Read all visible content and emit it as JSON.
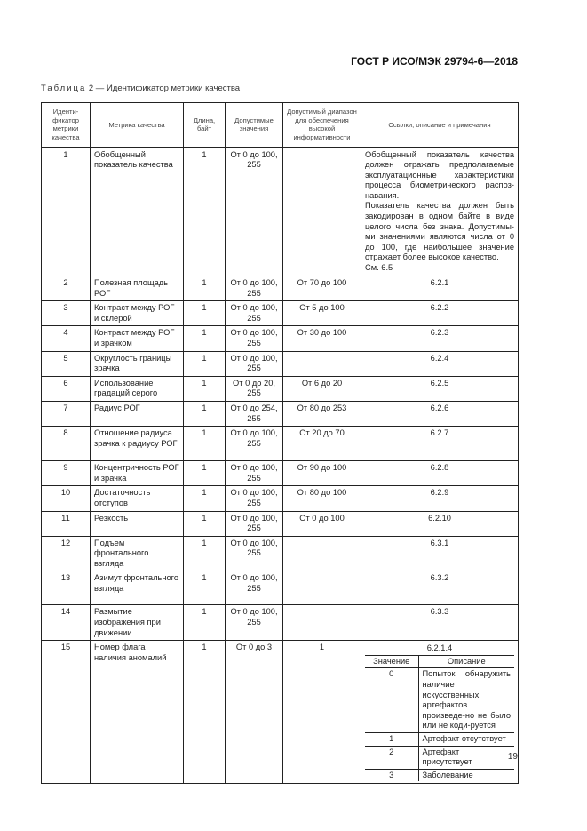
{
  "header": {
    "doc_code": "ГОСТ Р ИСО/МЭК 29794-6—2018"
  },
  "caption": {
    "label": "Таблица",
    "text": " 2 — Идентификатор метрики качества"
  },
  "table": {
    "columns": [
      "Иденти-фикатор метрики качества",
      "Метрика качества",
      "Длина, байт",
      "Допустимые значения",
      "Допустимый диапазон для обеспечения высокой информативности",
      "Ссылки, описание и примечания"
    ],
    "rows": [
      {
        "id": "1",
        "metric": "Обобщенный показатель качества",
        "len": "1",
        "values": "От 0 до 100, 255",
        "range": "",
        "ref": "Обобщенный показатель качества должен отражать предполагаемые эксплуатационные характеристики процесса биометрического распоз-навания.",
        "ref2": "Показатель качества должен быть закодирован в одном байте в виде целого числа без знака. Допустимы-ми значениями являются числа от 0 до 100, где наибольшее значение отражает более высокое качество.",
        "ref3": "См. 6.5"
      },
      {
        "id": "2",
        "metric": "Полезная площадь РОГ",
        "len": "1",
        "values": "От 0 до 100, 255",
        "range": "От 70 до 100",
        "ref": "6.2.1"
      },
      {
        "id": "3",
        "metric": "Контраст между РОГ и склерой",
        "len": "1",
        "values": "От 0 до 100, 255",
        "range": "От 5 до 100",
        "ref": "6.2.2"
      },
      {
        "id": "4",
        "metric": "Контраст между РОГ и зрачком",
        "len": "1",
        "values": "От 0 до 100, 255",
        "range": "От 30 до 100",
        "ref": "6.2.3"
      },
      {
        "id": "5",
        "metric": "Округлость границы зрачка",
        "len": "1",
        "values": "От 0 до 100, 255",
        "range": "",
        "ref": "6.2.4"
      },
      {
        "id": "6",
        "metric": "Использование градаций серого",
        "len": "1",
        "values": "От 0 до 20, 255",
        "range": "От 6 до 20",
        "ref": "6.2.5"
      },
      {
        "id": "7",
        "metric": "Радиус РОГ",
        "len": "1",
        "values": "От 0 до 254, 255",
        "range": "От 80 до 253",
        "ref": "6.2.6"
      },
      {
        "id": "8",
        "metric": "Отношение радиуса зрачка к радиусу РОГ",
        "len": "1",
        "values": "От 0 до 100, 255",
        "range": "От 20 до 70",
        "ref": "6.2.7"
      },
      {
        "id": "9",
        "metric": "Концентричность РОГ и зрачка",
        "len": "1",
        "values": "От 0 до 100, 255",
        "range": "От 90 до 100",
        "ref": "6.2.8"
      },
      {
        "id": "10",
        "metric": "Достаточность отступов",
        "len": "1",
        "values": "От 0 до 100, 255",
        "range": "От 80 до 100",
        "ref": "6.2.9"
      },
      {
        "id": "11",
        "metric": "Резкость",
        "len": "1",
        "values": "От 0 до 100, 255",
        "range": "От 0 до 100",
        "ref": "6.2.10"
      },
      {
        "id": "12",
        "metric": "Подъем фронтального взгляда",
        "len": "1",
        "values": "От 0 до 100, 255",
        "range": "",
        "ref": "6.3.1"
      },
      {
        "id": "13",
        "metric": "Азимут фронтального взгляда",
        "len": "1",
        "values": "От 0 до 100, 255",
        "range": "",
        "ref": "6.3.2"
      },
      {
        "id": "14",
        "metric": "Размытие изображения при движении",
        "len": "1",
        "values": "От 0 до 100, 255",
        "range": "",
        "ref": "6.3.3"
      },
      {
        "id": "15",
        "metric": "Номер флага наличия аномалий",
        "len": "1",
        "values": "От 0 до 3",
        "range": "1",
        "ref": "6.2.1.4",
        "sub_header": [
          "Значение",
          "Описание"
        ],
        "sub_rows": [
          [
            "0",
            "Попыток обнаружить наличие искусственных артефактов произведе-но не было или не коди-руется"
          ],
          [
            "1",
            "Артефакт отсутствует"
          ],
          [
            "2",
            "Артефакт присутствует"
          ],
          [
            "3",
            "Заболевание"
          ]
        ]
      }
    ]
  },
  "footer": {
    "page_number": "19"
  }
}
